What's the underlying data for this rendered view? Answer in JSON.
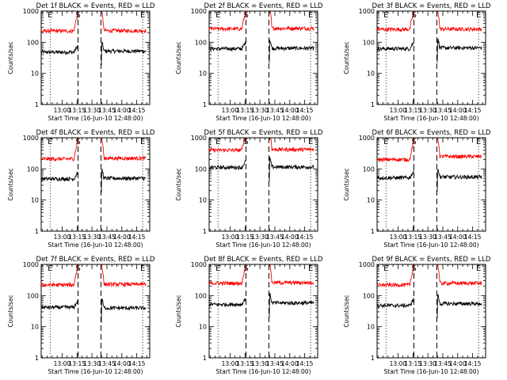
{
  "figure": {
    "series_colors": {
      "events": "#000000",
      "lld": "#ff0000"
    },
    "vline_style_note": "dotted = E markers, dashed = S markers"
  },
  "chart_data": [
    {
      "type": "line",
      "title": "Det 1f BLACK = Events, RED = LLD",
      "xlabel": "Start Time (16-Jun-10 12:48:00)",
      "ylabel": "Counts/sec",
      "yscale": "log",
      "ylim": [
        1,
        1000
      ],
      "xlim_minutes": [
        -9,
        100
      ],
      "x_ticks": [
        "13:00",
        "13:15",
        "13:30",
        "13:45",
        "14:00",
        "14:15"
      ],
      "x_tick_minutes": [
        12,
        27,
        42,
        57,
        72,
        87
      ],
      "y_ticks": [
        "1",
        "10",
        "100",
        "1000"
      ],
      "marker_labels": [
        {
          "text": "E",
          "minute": 0
        },
        {
          "text": "S",
          "minute": 28
        },
        {
          "text": "E",
          "minute": 93
        }
      ],
      "dotted_lines_minutes": [
        0,
        93
      ],
      "dashed_lines_minutes": [
        28,
        51
      ],
      "gap_minutes": [
        28,
        51
      ],
      "series": [
        {
          "name": "Events",
          "color": "#000000",
          "segments": [
            {
              "start": -9,
              "end": 28,
              "base": 48,
              "rise": 14
            },
            {
              "start": 51,
              "end": 96,
              "base": 52,
              "rise": -16
            }
          ]
        },
        {
          "name": "LLD",
          "color": "#ff0000",
          "segments": [
            {
              "start": -9,
              "end": 28,
              "base": 230,
              "rise": 22
            },
            {
              "start": 51,
              "end": 96,
              "base": 235,
              "rise": -22
            }
          ]
        }
      ]
    },
    {
      "type": "line",
      "title": "Det 2f BLACK = Events, RED = LLD",
      "xlabel": "Start Time (16-Jun-10 12:48:00)",
      "ylabel": "Counts/sec",
      "yscale": "log",
      "ylim": [
        1,
        1000
      ],
      "xlim_minutes": [
        -9,
        100
      ],
      "x_ticks": [
        "13:00",
        "13:15",
        "13:30",
        "13:45",
        "14:00",
        "14:15"
      ],
      "x_tick_minutes": [
        12,
        27,
        42,
        57,
        72,
        87
      ],
      "y_ticks": [
        "1",
        "10",
        "100",
        "1000"
      ],
      "marker_labels": [
        {
          "text": "E",
          "minute": 0
        },
        {
          "text": "S",
          "minute": 28
        },
        {
          "text": "E",
          "minute": 93
        }
      ],
      "dotted_lines_minutes": [
        0,
        93
      ],
      "dashed_lines_minutes": [
        28,
        51
      ],
      "gap_minutes": [
        28,
        51
      ],
      "series": [
        {
          "name": "Events",
          "color": "#000000",
          "segments": [
            {
              "start": -9,
              "end": 28,
              "base": 62,
              "rise": 14
            },
            {
              "start": 51,
              "end": 96,
              "base": 64,
              "rise": -16
            }
          ]
        },
        {
          "name": "LLD",
          "color": "#ff0000",
          "segments": [
            {
              "start": -9,
              "end": 28,
              "base": 270,
              "rise": 22
            },
            {
              "start": 51,
              "end": 96,
              "base": 280,
              "rise": -22
            }
          ]
        }
      ]
    },
    {
      "type": "line",
      "title": "Det 3f BLACK = Events, RED = LLD",
      "xlabel": "Start Time (16-Jun-10 12:48:00)",
      "ylabel": "Counts/sec",
      "yscale": "log",
      "ylim": [
        1,
        1000
      ],
      "xlim_minutes": [
        -9,
        100
      ],
      "x_ticks": [
        "13:00",
        "13:15",
        "13:30",
        "13:45",
        "14:00",
        "14:15"
      ],
      "x_tick_minutes": [
        12,
        27,
        42,
        57,
        72,
        87
      ],
      "y_ticks": [
        "1",
        "10",
        "100",
        "1000"
      ],
      "marker_labels": [
        {
          "text": "E",
          "minute": 0
        },
        {
          "text": "S",
          "minute": 28
        },
        {
          "text": "E",
          "minute": 93
        }
      ],
      "dotted_lines_minutes": [
        0,
        93
      ],
      "dashed_lines_minutes": [
        28,
        51
      ],
      "gap_minutes": [
        28,
        51
      ],
      "series": [
        {
          "name": "Events",
          "color": "#000000",
          "segments": [
            {
              "start": -9,
              "end": 28,
              "base": 62,
              "rise": 14
            },
            {
              "start": 51,
              "end": 96,
              "base": 66,
              "rise": -16
            }
          ]
        },
        {
          "name": "LLD",
          "color": "#ff0000",
          "segments": [
            {
              "start": -9,
              "end": 28,
              "base": 260,
              "rise": 22
            },
            {
              "start": 51,
              "end": 96,
              "base": 265,
              "rise": -22
            }
          ]
        }
      ]
    },
    {
      "type": "line",
      "title": "Det 4f BLACK = Events, RED = LLD",
      "xlabel": "Start Time (16-Jun-10 12:48:00)",
      "ylabel": "Counts/sec",
      "yscale": "log",
      "ylim": [
        1,
        1000
      ],
      "xlim_minutes": [
        -9,
        100
      ],
      "x_ticks": [
        "13:00",
        "13:15",
        "13:30",
        "13:45",
        "14:00",
        "14:15"
      ],
      "x_tick_minutes": [
        12,
        27,
        42,
        57,
        72,
        87
      ],
      "y_ticks": [
        "1",
        "10",
        "100",
        "1000"
      ],
      "marker_labels": [
        {
          "text": "E",
          "minute": 0
        },
        {
          "text": "S",
          "minute": 28
        },
        {
          "text": "E",
          "minute": 93
        }
      ],
      "dotted_lines_minutes": [
        0,
        93
      ],
      "dashed_lines_minutes": [
        28,
        51
      ],
      "gap_minutes": [
        28,
        51
      ],
      "series": [
        {
          "name": "Events",
          "color": "#000000",
          "segments": [
            {
              "start": -9,
              "end": 28,
              "base": 48,
              "rise": 14
            },
            {
              "start": 51,
              "end": 96,
              "base": 50,
              "rise": -16
            }
          ]
        },
        {
          "name": "LLD",
          "color": "#ff0000",
          "segments": [
            {
              "start": -9,
              "end": 28,
              "base": 210,
              "rise": 22
            },
            {
              "start": 51,
              "end": 96,
              "base": 220,
              "rise": -22
            }
          ]
        }
      ]
    },
    {
      "type": "line",
      "title": "Det 5f BLACK = Events, RED = LLD",
      "xlabel": "Start Time (16-Jun-10 12:48:00)",
      "ylabel": "Counts/sec",
      "yscale": "log",
      "ylim": [
        1,
        1000
      ],
      "xlim_minutes": [
        -9,
        100
      ],
      "x_ticks": [
        "13:00",
        "13:15",
        "13:30",
        "13:45",
        "14:00",
        "14:15"
      ],
      "x_tick_minutes": [
        12,
        27,
        42,
        57,
        72,
        87
      ],
      "y_ticks": [
        "1",
        "10",
        "100",
        "1000"
      ],
      "marker_labels": [
        {
          "text": "E",
          "minute": 0
        },
        {
          "text": "S",
          "minute": 28
        },
        {
          "text": "E",
          "minute": 93
        }
      ],
      "dotted_lines_minutes": [
        0,
        93
      ],
      "dashed_lines_minutes": [
        28,
        51
      ],
      "gap_minutes": [
        28,
        51
      ],
      "series": [
        {
          "name": "Events",
          "color": "#000000",
          "segments": [
            {
              "start": -9,
              "end": 28,
              "base": 112,
              "rise": 14
            },
            {
              "start": 51,
              "end": 96,
              "base": 115,
              "rise": -16
            }
          ]
        },
        {
          "name": "LLD",
          "color": "#ff0000",
          "segments": [
            {
              "start": -9,
              "end": 28,
              "base": 400,
              "rise": 22
            },
            {
              "start": 51,
              "end": 96,
              "base": 420,
              "rise": -22
            }
          ]
        }
      ]
    },
    {
      "type": "line",
      "title": "Det 6f BLACK = Events, RED = LLD",
      "xlabel": "Start Time (16-Jun-10 12:48:00)",
      "ylabel": "Counts/sec",
      "yscale": "log",
      "ylim": [
        1,
        1000
      ],
      "xlim_minutes": [
        -9,
        100
      ],
      "x_ticks": [
        "13:00",
        "13:15",
        "13:30",
        "13:45",
        "14:00",
        "14:15"
      ],
      "x_tick_minutes": [
        12,
        27,
        42,
        57,
        72,
        87
      ],
      "y_ticks": [
        "1",
        "10",
        "100",
        "1000"
      ],
      "marker_labels": [
        {
          "text": "E",
          "minute": 0
        },
        {
          "text": "S",
          "minute": 28
        },
        {
          "text": "E",
          "minute": 93
        }
      ],
      "dotted_lines_minutes": [
        0,
        93
      ],
      "dashed_lines_minutes": [
        28,
        51
      ],
      "gap_minutes": [
        28,
        51
      ],
      "series": [
        {
          "name": "Events",
          "color": "#000000",
          "segments": [
            {
              "start": -9,
              "end": 28,
              "base": 52,
              "rise": 14
            },
            {
              "start": 51,
              "end": 96,
              "base": 55,
              "rise": -16
            }
          ]
        },
        {
          "name": "LLD",
          "color": "#ff0000",
          "segments": [
            {
              "start": -9,
              "end": 28,
              "base": 200,
              "rise": 22
            },
            {
              "start": 51,
              "end": 96,
              "base": 250,
              "rise": -22
            }
          ]
        }
      ]
    },
    {
      "type": "line",
      "title": "Det 7f BLACK = Events, RED = LLD",
      "xlabel": "Start Time (16-Jun-10 12:48:00)",
      "ylabel": "Counts/sec",
      "yscale": "log",
      "ylim": [
        1,
        1000
      ],
      "xlim_minutes": [
        -9,
        100
      ],
      "x_ticks": [
        "13:00",
        "13:15",
        "13:30",
        "13:45",
        "14:00",
        "14:15"
      ],
      "x_tick_minutes": [
        12,
        27,
        42,
        57,
        72,
        87
      ],
      "y_ticks": [
        "1",
        "10",
        "100",
        "1000"
      ],
      "marker_labels": [
        {
          "text": "E",
          "minute": 0
        },
        {
          "text": "S",
          "minute": 28
        },
        {
          "text": "E",
          "minute": 93
        }
      ],
      "dotted_lines_minutes": [
        0,
        93
      ],
      "dashed_lines_minutes": [
        28,
        51
      ],
      "gap_minutes": [
        28,
        51
      ],
      "series": [
        {
          "name": "Events",
          "color": "#000000",
          "segments": [
            {
              "start": -9,
              "end": 28,
              "base": 42,
              "rise": 14
            },
            {
              "start": 51,
              "end": 96,
              "base": 40,
              "rise": -16
            }
          ]
        },
        {
          "name": "LLD",
          "color": "#ff0000",
          "segments": [
            {
              "start": -9,
              "end": 28,
              "base": 220,
              "rise": 22
            },
            {
              "start": 51,
              "end": 96,
              "base": 230,
              "rise": -22
            }
          ]
        }
      ]
    },
    {
      "type": "line",
      "title": "Det 8f BLACK = Events, RED = LLD",
      "xlabel": "Start Time (16-Jun-10 12:48:00)",
      "ylabel": "Counts/sec",
      "yscale": "log",
      "ylim": [
        1,
        1000
      ],
      "xlim_minutes": [
        -9,
        100
      ],
      "x_ticks": [
        "13:00",
        "13:15",
        "13:30",
        "13:45",
        "14:00",
        "14:15"
      ],
      "x_tick_minutes": [
        12,
        27,
        42,
        57,
        72,
        87
      ],
      "y_ticks": [
        "1",
        "10",
        "100",
        "1000"
      ],
      "marker_labels": [
        {
          "text": "E",
          "minute": 0
        },
        {
          "text": "S",
          "minute": 28
        },
        {
          "text": "E",
          "minute": 93
        }
      ],
      "dotted_lines_minutes": [
        0,
        93
      ],
      "dashed_lines_minutes": [
        28,
        51
      ],
      "gap_minutes": [
        28,
        51
      ],
      "series": [
        {
          "name": "Events",
          "color": "#000000",
          "segments": [
            {
              "start": -9,
              "end": 28,
              "base": 52,
              "rise": 14
            },
            {
              "start": 51,
              "end": 96,
              "base": 58,
              "rise": -16
            }
          ]
        },
        {
          "name": "LLD",
          "color": "#ff0000",
          "segments": [
            {
              "start": -9,
              "end": 28,
              "base": 250,
              "rise": 22
            },
            {
              "start": 51,
              "end": 96,
              "base": 260,
              "rise": -22
            }
          ]
        }
      ]
    },
    {
      "type": "line",
      "title": "Det 9f BLACK = Events, RED = LLD",
      "xlabel": "Start Time (16-Jun-10 12:48:00)",
      "ylabel": "Counts/sec",
      "yscale": "log",
      "ylim": [
        1,
        1000
      ],
      "xlim_minutes": [
        -9,
        100
      ],
      "x_ticks": [
        "13:00",
        "13:15",
        "13:30",
        "13:45",
        "14:00",
        "14:15"
      ],
      "x_tick_minutes": [
        12,
        27,
        42,
        57,
        72,
        87
      ],
      "y_ticks": [
        "1",
        "10",
        "100",
        "1000"
      ],
      "marker_labels": [
        {
          "text": "E",
          "minute": 0
        },
        {
          "text": "S",
          "minute": 28
        },
        {
          "text": "E",
          "minute": 93
        }
      ],
      "dotted_lines_minutes": [
        0,
        93
      ],
      "dashed_lines_minutes": [
        28,
        51
      ],
      "gap_minutes": [
        28,
        51
      ],
      "series": [
        {
          "name": "Events",
          "color": "#000000",
          "segments": [
            {
              "start": -9,
              "end": 28,
              "base": 48,
              "rise": 14
            },
            {
              "start": 51,
              "end": 96,
              "base": 55,
              "rise": -16
            }
          ]
        },
        {
          "name": "LLD",
          "color": "#ff0000",
          "segments": [
            {
              "start": -9,
              "end": 28,
              "base": 220,
              "rise": 22
            },
            {
              "start": 51,
              "end": 96,
              "base": 250,
              "rise": -22
            }
          ]
        }
      ]
    }
  ]
}
